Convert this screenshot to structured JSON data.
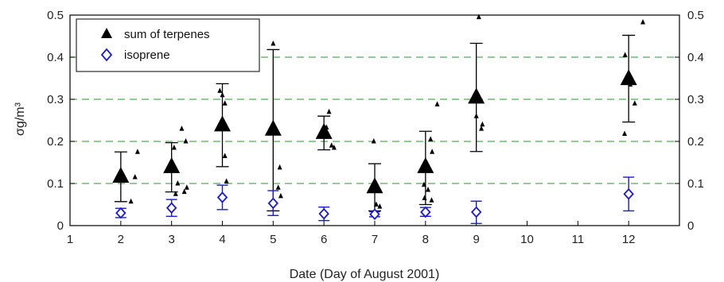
{
  "chart_data": {
    "type": "scatter",
    "xlabel": "Date (Day of August 2001)",
    "ylabel": "σg/m³",
    "xlim": [
      1,
      13
    ],
    "ylim": [
      0,
      0.5
    ],
    "x_ticks": [
      1,
      2,
      3,
      4,
      5,
      6,
      7,
      8,
      9,
      10,
      11,
      12
    ],
    "y_ticks": [
      0,
      0.1,
      0.2,
      0.3,
      0.4,
      0.5
    ],
    "y_tick_labels": [
      "0",
      "0.1",
      "0.2",
      "0.3",
      "0.4",
      "0.5"
    ],
    "right_axis_mirrored": true,
    "reference_lines": {
      "y": [
        0.1,
        0.2,
        0.3,
        0.4
      ],
      "style": "dashed",
      "color": "#4caf50"
    },
    "legend_position": "top-left",
    "series": [
      {
        "name": "sum of terpenes",
        "marker": "filled-triangle",
        "color": "#000000",
        "points": [
          {
            "x": 2,
            "y": 0.115,
            "err_low": 0.057,
            "err_high": 0.175
          },
          {
            "x": 3,
            "y": 0.138,
            "err_low": 0.08,
            "err_high": 0.197
          },
          {
            "x": 4,
            "y": 0.237,
            "err_low": 0.14,
            "err_high": 0.337
          },
          {
            "x": 5,
            "y": 0.227,
            "err_low": 0.035,
            "err_high": 0.418
          },
          {
            "x": 6,
            "y": 0.219,
            "err_low": 0.18,
            "err_high": 0.26
          },
          {
            "x": 7,
            "y": 0.09,
            "err_low": 0.035,
            "err_high": 0.147
          },
          {
            "x": 8,
            "y": 0.138,
            "err_low": 0.05,
            "err_high": 0.224
          },
          {
            "x": 9,
            "y": 0.303,
            "err_low": 0.176,
            "err_high": 0.433
          },
          {
            "x": 12,
            "y": 0.347,
            "err_low": 0.246,
            "err_high": 0.452
          }
        ]
      },
      {
        "name": "isoprene",
        "marker": "open-diamond",
        "color": "#1a1ad6",
        "points": [
          {
            "x": 2,
            "y": 0.03,
            "err_low": 0.019,
            "err_high": 0.041
          },
          {
            "x": 3,
            "y": 0.042,
            "err_low": 0.022,
            "err_high": 0.062
          },
          {
            "x": 4,
            "y": 0.067,
            "err_low": 0.038,
            "err_high": 0.096
          },
          {
            "x": 5,
            "y": 0.053,
            "err_low": 0.024,
            "err_high": 0.083
          },
          {
            "x": 6,
            "y": 0.028,
            "err_low": 0.012,
            "err_high": 0.044
          },
          {
            "x": 7,
            "y": 0.027,
            "err_low": 0.021,
            "err_high": 0.033
          },
          {
            "x": 8,
            "y": 0.032,
            "err_low": 0.022,
            "err_high": 0.043
          },
          {
            "x": 9,
            "y": 0.032,
            "err_low": 0.005,
            "err_high": 0.058
          },
          {
            "x": 12,
            "y": 0.075,
            "err_low": 0.035,
            "err_high": 0.115
          }
        ]
      },
      {
        "name": "",
        "marker": "small-triangle",
        "color": "#000000",
        "points": [
          {
            "x": 2.33,
            "y": 0.175
          },
          {
            "x": 2.28,
            "y": 0.115
          },
          {
            "x": 2.2,
            "y": 0.057
          },
          {
            "x": 3.2,
            "y": 0.23
          },
          {
            "x": 3.28,
            "y": 0.2
          },
          {
            "x": 3.05,
            "y": 0.185
          },
          {
            "x": 3.12,
            "y": 0.1
          },
          {
            "x": 3.3,
            "y": 0.09
          },
          {
            "x": 3.25,
            "y": 0.08
          },
          {
            "x": 3.08,
            "y": 0.075
          },
          {
            "x": 3.95,
            "y": 0.32
          },
          {
            "x": 4.0,
            "y": 0.31
          },
          {
            "x": 4.05,
            "y": 0.29
          },
          {
            "x": 4.05,
            "y": 0.165
          },
          {
            "x": 4.08,
            "y": 0.105
          },
          {
            "x": 5.0,
            "y": 0.432
          },
          {
            "x": 5.13,
            "y": 0.138
          },
          {
            "x": 5.1,
            "y": 0.09
          },
          {
            "x": 5.15,
            "y": 0.07
          },
          {
            "x": 6.1,
            "y": 0.27
          },
          {
            "x": 6.05,
            "y": 0.233
          },
          {
            "x": 6.15,
            "y": 0.19
          },
          {
            "x": 6.2,
            "y": 0.185
          },
          {
            "x": 6.98,
            "y": 0.2
          },
          {
            "x": 7.03,
            "y": 0.05
          },
          {
            "x": 7.1,
            "y": 0.045
          },
          {
            "x": 8.23,
            "y": 0.288
          },
          {
            "x": 8.1,
            "y": 0.205
          },
          {
            "x": 8.13,
            "y": 0.175
          },
          {
            "x": 7.97,
            "y": 0.097
          },
          {
            "x": 8.05,
            "y": 0.085
          },
          {
            "x": 7.98,
            "y": 0.065
          },
          {
            "x": 8.12,
            "y": 0.06
          },
          {
            "x": 9.05,
            "y": 0.495
          },
          {
            "x": 9.0,
            "y": 0.26
          },
          {
            "x": 9.12,
            "y": 0.24
          },
          {
            "x": 9.1,
            "y": 0.23
          },
          {
            "x": 12.28,
            "y": 0.483
          },
          {
            "x": 11.93,
            "y": 0.405
          },
          {
            "x": 12.05,
            "y": 0.345
          },
          {
            "x": 12.03,
            "y": 0.335
          },
          {
            "x": 12.12,
            "y": 0.29
          },
          {
            "x": 11.92,
            "y": 0.218
          }
        ]
      }
    ]
  }
}
